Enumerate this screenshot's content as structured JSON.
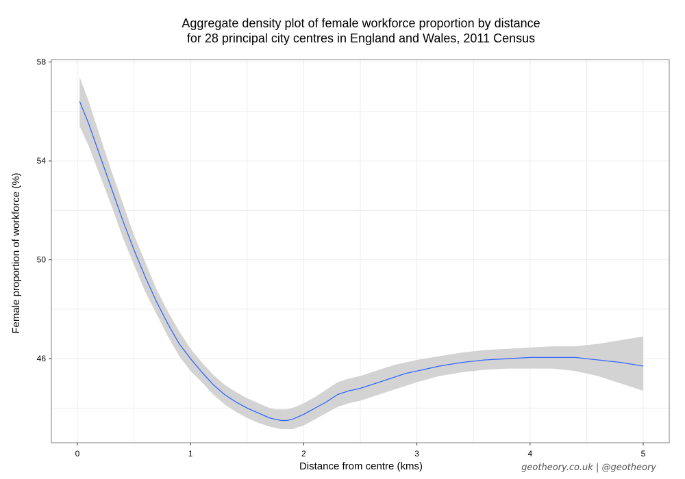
{
  "chart_data": {
    "type": "line",
    "title_lines": [
      "Aggregate density plot of female workforce proportion by distance",
      "for 28 principal city centres in England and Wales, 2011 Census"
    ],
    "xlabel": "Distance from centre (kms)",
    "ylabel": "Female proportion of workforce (%)",
    "xlim": [
      -0.23,
      5.23
    ],
    "ylim": [
      42.6,
      58.1
    ],
    "x_ticks": [
      0,
      1,
      2,
      3,
      4,
      5
    ],
    "x_tick_labels": [
      "0",
      "1",
      "2",
      "3",
      "4",
      "5"
    ],
    "y_ticks": [
      46,
      50,
      54,
      58
    ],
    "y_tick_labels": [
      "46",
      "50",
      "54",
      "58"
    ],
    "grid": true,
    "legend": "none",
    "colors": {
      "line": "#3366ff",
      "band": "#d3d3d3",
      "grid": "#ececec",
      "border": "#7f7f7f"
    },
    "series": [
      {
        "x": [
          0.02,
          0.1,
          0.2,
          0.3,
          0.4,
          0.5,
          0.6,
          0.7,
          0.8,
          0.9,
          1.0,
          1.1,
          1.2,
          1.3,
          1.4,
          1.5,
          1.6,
          1.7,
          1.75,
          1.8,
          1.85,
          1.9,
          2.0,
          2.1,
          2.2,
          2.3,
          2.4,
          2.5,
          2.6,
          2.7,
          2.8,
          2.9,
          3.0,
          3.2,
          3.4,
          3.6,
          3.8,
          4.0,
          4.2,
          4.4,
          4.6,
          4.8,
          5.0
        ],
        "y": [
          56.4,
          55.5,
          54.2,
          52.9,
          51.6,
          50.4,
          49.3,
          48.3,
          47.4,
          46.6,
          46.0,
          45.45,
          44.95,
          44.55,
          44.25,
          44.0,
          43.8,
          43.6,
          43.55,
          43.5,
          43.5,
          43.55,
          43.75,
          44.0,
          44.25,
          44.55,
          44.7,
          44.8,
          44.95,
          45.1,
          45.25,
          45.4,
          45.5,
          45.7,
          45.85,
          45.95,
          46.0,
          46.05,
          46.05,
          46.05,
          45.95,
          45.85,
          45.7
        ],
        "upper": [
          57.4,
          56.4,
          55.0,
          53.6,
          52.3,
          51.0,
          49.9,
          48.8,
          47.9,
          47.1,
          46.4,
          45.85,
          45.35,
          44.95,
          44.65,
          44.4,
          44.2,
          44.0,
          43.95,
          43.95,
          43.95,
          44.0,
          44.2,
          44.45,
          44.75,
          45.05,
          45.2,
          45.3,
          45.45,
          45.6,
          45.75,
          45.85,
          45.95,
          46.1,
          46.25,
          46.35,
          46.4,
          46.45,
          46.5,
          46.5,
          46.6,
          46.75,
          46.9
        ],
        "lower": [
          55.4,
          54.6,
          53.4,
          52.2,
          50.9,
          49.8,
          48.7,
          47.8,
          46.9,
          46.1,
          45.5,
          45.05,
          44.55,
          44.15,
          43.85,
          43.6,
          43.4,
          43.25,
          43.2,
          43.15,
          43.15,
          43.15,
          43.3,
          43.55,
          43.8,
          44.05,
          44.2,
          44.3,
          44.45,
          44.6,
          44.75,
          44.9,
          45.05,
          45.3,
          45.45,
          45.55,
          45.6,
          45.6,
          45.6,
          45.5,
          45.3,
          45.0,
          44.7
        ]
      }
    ]
  },
  "footer": {
    "credit": "geotheory.co.uk | @geotheory"
  }
}
